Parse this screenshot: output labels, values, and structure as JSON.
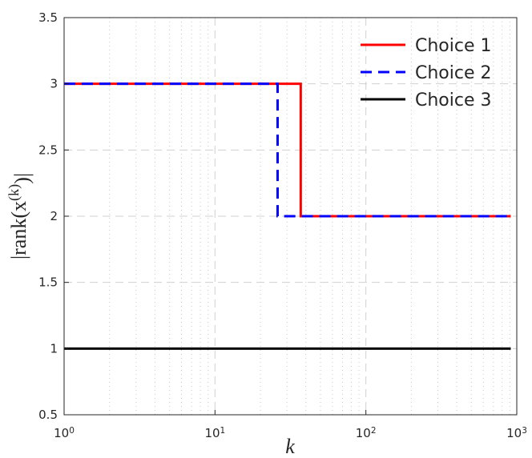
{
  "chart_data": {
    "type": "line",
    "xlabel": "k",
    "ylabel": "|rank(x^(k))|",
    "xscale": "log",
    "xlim": [
      1,
      1000
    ],
    "ylim": [
      0.5,
      3.5
    ],
    "xticks": [
      {
        "value": 1,
        "label": "10^0"
      },
      {
        "value": 10,
        "label": "10^1"
      },
      {
        "value": 100,
        "label": "10^2"
      },
      {
        "value": 1000,
        "label": "10^3"
      }
    ],
    "yticks": [
      0.5,
      1,
      1.5,
      2,
      2.5,
      3,
      3.5
    ],
    "grid": true,
    "minor_grid": true,
    "legend": "upper right",
    "series": [
      {
        "name": "Choice 1",
        "color": "#ff0000",
        "dash": "solid",
        "x": [
          1,
          37,
          37,
          912
        ],
        "values": [
          3,
          3,
          2,
          2
        ]
      },
      {
        "name": "Choice 2",
        "color": "#0000ff",
        "dash": "dashed",
        "x": [
          1,
          26,
          26,
          912
        ],
        "values": [
          3,
          3,
          2,
          2
        ]
      },
      {
        "name": "Choice 3",
        "color": "#000000",
        "dash": "solid",
        "x": [
          1,
          912
        ],
        "values": [
          1,
          1
        ]
      }
    ]
  }
}
